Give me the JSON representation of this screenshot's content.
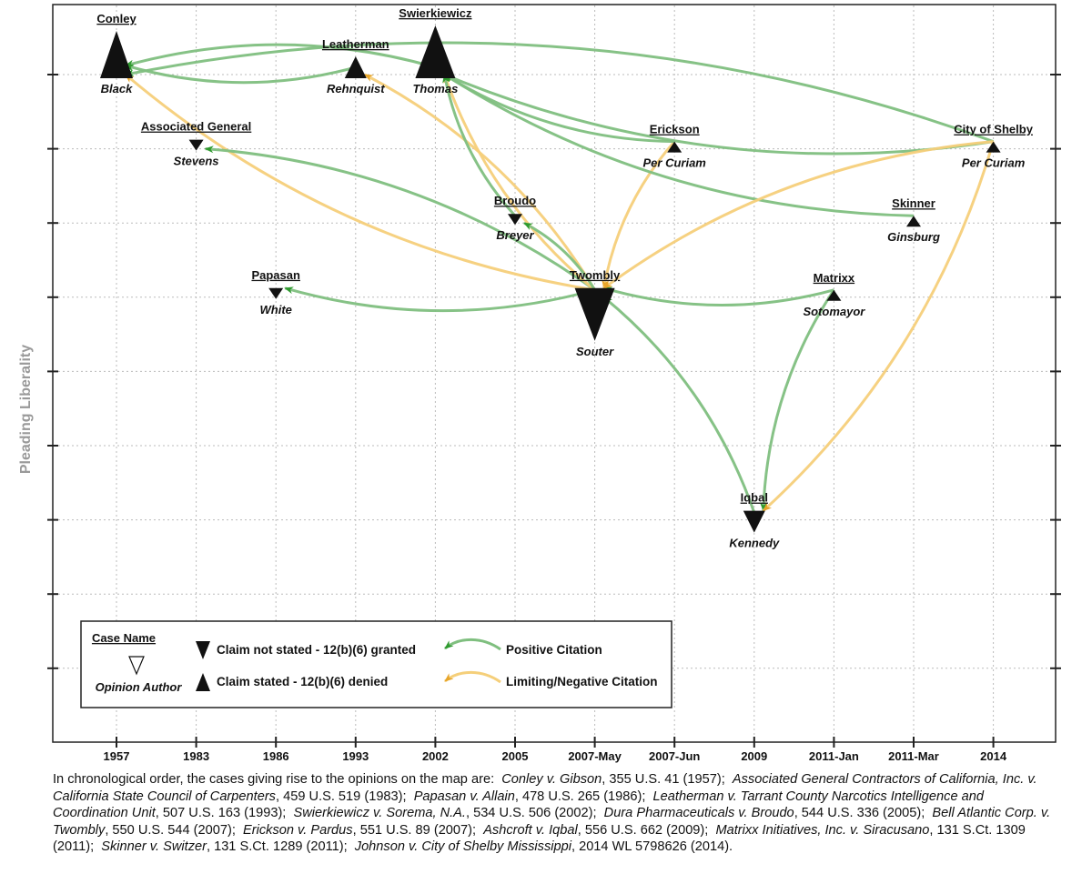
{
  "chart_data": {
    "type": "citation-network",
    "ylabel": "Pleading Liberality",
    "x_categories": [
      "1957",
      "1983",
      "1986",
      "1993",
      "2002",
      "2005",
      "2007-May",
      "2007-Jun",
      "2009",
      "2011-Jan",
      "2011-Mar",
      "2014"
    ],
    "y_range": [
      0,
      9
    ],
    "cases": [
      {
        "id": "conley",
        "name": "Conley",
        "author": "Black",
        "x": "1957",
        "y": 8.0,
        "outcome": "denied",
        "size": "large"
      },
      {
        "id": "assoc",
        "name": "Associated General",
        "author": "Stevens",
        "x": "1983",
        "y": 7.0,
        "outcome": "granted",
        "size": "small"
      },
      {
        "id": "papasan",
        "name": "Papasan",
        "author": "White",
        "x": "1986",
        "y": 5.0,
        "outcome": "granted",
        "size": "small"
      },
      {
        "id": "leatherman",
        "name": "Leatherman",
        "author": "Rehnquist",
        "x": "1993",
        "y": 8.0,
        "outcome": "denied",
        "size": "medium"
      },
      {
        "id": "swierk",
        "name": "Swierkiewicz",
        "author": "Thomas",
        "x": "2002",
        "y": 8.0,
        "outcome": "denied",
        "size": "xlarge"
      },
      {
        "id": "broudo",
        "name": "Broudo",
        "author": "Breyer",
        "x": "2005",
        "y": 6.0,
        "outcome": "granted",
        "size": "small"
      },
      {
        "id": "twombly",
        "name": "Twombly",
        "author": "Souter",
        "x": "2007-May",
        "y": 5.0,
        "outcome": "granted",
        "size": "xlarge"
      },
      {
        "id": "erickson",
        "name": "Erickson",
        "author": "Per Curiam",
        "x": "2007-Jun",
        "y": 7.0,
        "outcome": "denied",
        "size": "small"
      },
      {
        "id": "iqbal",
        "name": "Iqbal",
        "author": "Kennedy",
        "x": "2009",
        "y": 2.0,
        "outcome": "granted",
        "size": "medium"
      },
      {
        "id": "matrixx",
        "name": "Matrixx",
        "author": "Sotomayor",
        "x": "2011-Jan",
        "y": 5.0,
        "outcome": "denied",
        "size": "small"
      },
      {
        "id": "skinner",
        "name": "Skinner",
        "author": "Ginsburg",
        "x": "2011-Mar",
        "y": 6.0,
        "outcome": "denied",
        "size": "small"
      },
      {
        "id": "shelby",
        "name": "City of Shelby",
        "author": "Per Curiam",
        "x": "2014",
        "y": 7.0,
        "outcome": "denied",
        "size": "small"
      }
    ],
    "citations": [
      {
        "from": "twombly",
        "to": "conley",
        "kind": "negative"
      },
      {
        "from": "twombly",
        "to": "assoc",
        "kind": "positive"
      },
      {
        "from": "twombly",
        "to": "papasan",
        "kind": "positive"
      },
      {
        "from": "twombly",
        "to": "leatherman",
        "kind": "negative"
      },
      {
        "from": "twombly",
        "to": "swierk",
        "kind": "negative"
      },
      {
        "from": "twombly",
        "to": "broudo",
        "kind": "positive"
      },
      {
        "from": "broudo",
        "to": "swierk",
        "kind": "positive"
      },
      {
        "from": "swierk",
        "to": "conley",
        "kind": "positive"
      },
      {
        "from": "leatherman",
        "to": "conley",
        "kind": "positive"
      },
      {
        "from": "erickson",
        "to": "twombly",
        "kind": "negative"
      },
      {
        "from": "erickson",
        "to": "swierk",
        "kind": "positive"
      },
      {
        "from": "iqbal",
        "to": "twombly",
        "kind": "positive"
      },
      {
        "from": "matrixx",
        "to": "twombly",
        "kind": "positive"
      },
      {
        "from": "matrixx",
        "to": "iqbal",
        "kind": "positive"
      },
      {
        "from": "skinner",
        "to": "swierk",
        "kind": "positive"
      },
      {
        "from": "shelby",
        "to": "conley",
        "kind": "positive"
      },
      {
        "from": "shelby",
        "to": "swierk",
        "kind": "positive"
      },
      {
        "from": "shelby",
        "to": "twombly",
        "kind": "negative"
      },
      {
        "from": "shelby",
        "to": "iqbal",
        "kind": "negative"
      }
    ],
    "colors": {
      "positive": "#7fbf7f",
      "negative": "#f5cf7a",
      "arrow_positive": "#2f9a2f",
      "arrow_negative": "#e7a52a",
      "marker": "#111111",
      "grid": "#bbbbbb"
    },
    "legend": {
      "case_name": "Case Name",
      "opinion_author": "Opinion Author",
      "granted": "Claim not stated - 12(b)(6) granted",
      "denied": "Claim stated - 12(b)(6) denied",
      "positive": "Positive Citation",
      "negative": "Limiting/Negative Citation"
    }
  },
  "caption": {
    "intro": "In chronological order, the cases giving rise to the opinions on the map are:",
    "entries": [
      {
        "name": "Conley v. Gibson",
        "cite": ", 355 U.S. 41 (1957);"
      },
      {
        "name": "Associated General Contractors of California, Inc. v. California State Council of Carpenters",
        "cite": ", 459 U.S. 519 (1983);"
      },
      {
        "name": "Papasan v. Allain",
        "cite": ", 478 U.S. 265 (1986);"
      },
      {
        "name": "Leatherman v. Tarrant County Narcotics Intelligence and Coordination Unit",
        "cite": ", 507 U.S. 163 (1993);"
      },
      {
        "name": "Swierkiewicz v. Sorema, N.A.",
        "cite": ", 534 U.S. 506 (2002);"
      },
      {
        "name": "Dura Pharmaceuticals v. Broudo",
        "cite": ", 544 U.S. 336 (2005);"
      },
      {
        "name": "Bell Atlantic Corp. v. Twombly",
        "cite": ", 550 U.S. 544 (2007);"
      },
      {
        "name": "Erickson v. Pardus",
        "cite": ", 551 U.S. 89 (2007);"
      },
      {
        "name": "Ashcroft v. Iqbal",
        "cite": ", 556 U.S. 662 (2009);"
      },
      {
        "name": "Matrixx Initiatives, Inc. v. Siracusano",
        "cite": ", 131 S.Ct. 1309 (2011);"
      },
      {
        "name": "Skinner v. Switzer",
        "cite": ", 131 S.Ct. 1289 (2011);"
      },
      {
        "name": "Johnson v. City of Shelby Mississippi",
        "cite": ", 2014 WL 5798626 (2014)."
      }
    ]
  }
}
